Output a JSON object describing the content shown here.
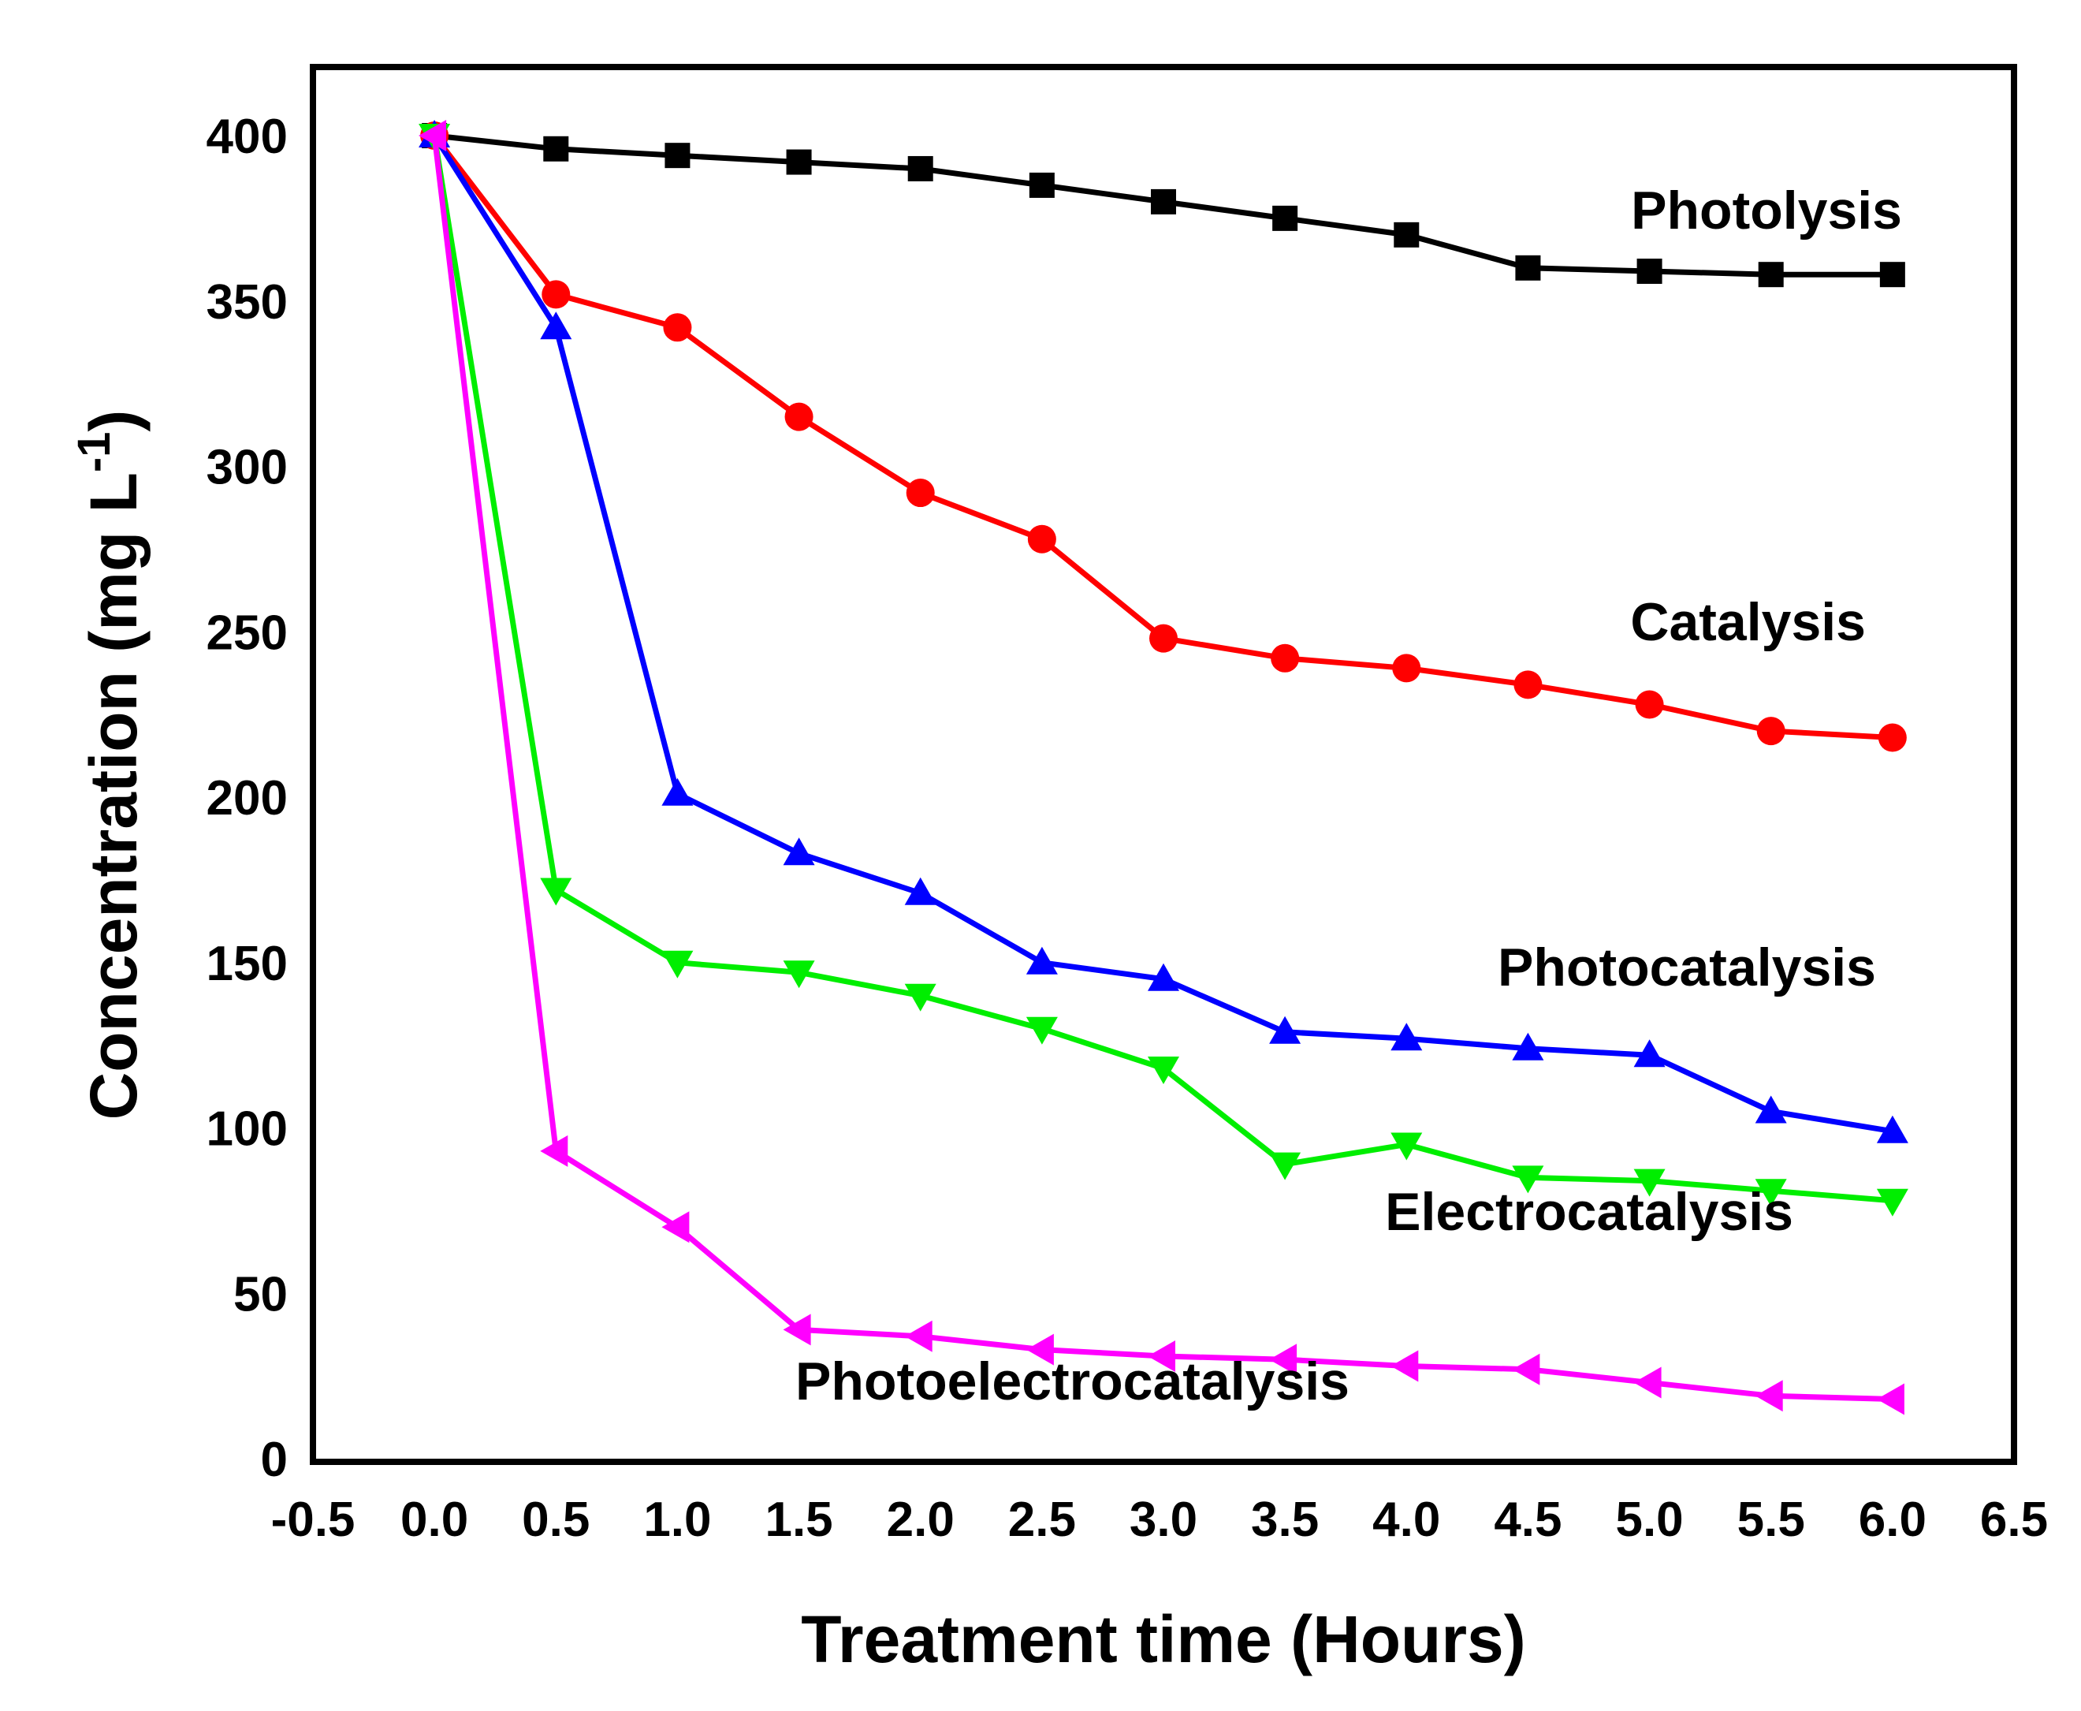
{
  "chart_data": {
    "type": "line",
    "title": "",
    "xlabel": "Treatment time (Hours)",
    "ylabel_main": "Concentration (mg L",
    "ylabel_sup": "-1",
    "ylabel_close": ")",
    "xlim": [
      -0.5,
      6.5
    ],
    "ylim": [
      0,
      400
    ],
    "x_ticks": [
      -0.5,
      0.0,
      0.5,
      1.0,
      1.5,
      2.0,
      2.5,
      3.0,
      3.5,
      4.0,
      4.5,
      5.0,
      5.5,
      6.0,
      6.5
    ],
    "x_tick_labels": [
      "-0.5",
      "0.0",
      "0.5",
      "1.0",
      "1.5",
      "2.0",
      "2.5",
      "3.0",
      "3.5",
      "4.0",
      "4.5",
      "5.0",
      "5.5",
      "6.0",
      "6.5"
    ],
    "y_ticks": [
      0,
      50,
      100,
      150,
      200,
      250,
      300,
      350,
      400
    ],
    "y_tick_labels": [
      "0",
      "50",
      "100",
      "150",
      "200",
      "250",
      "300",
      "350",
      "400"
    ],
    "grid": false,
    "legend": "inline labels",
    "x": [
      0.0,
      0.5,
      1.0,
      1.5,
      2.0,
      2.5,
      3.0,
      3.5,
      4.0,
      4.5,
      5.0,
      5.5,
      6.0
    ],
    "series": [
      {
        "name": "Photolysis",
        "color": "#000000",
        "marker": "square",
        "values": [
          400,
          396,
          394,
          392,
          390,
          385,
          380,
          375,
          370,
          360,
          359,
          358,
          358
        ]
      },
      {
        "name": "Catalysis",
        "color": "#ff0000",
        "marker": "circle",
        "values": [
          400,
          352,
          342,
          315,
          292,
          278,
          248,
          242,
          239,
          234,
          228,
          220,
          218
        ]
      },
      {
        "name": "Photocatalysis",
        "color": "#0000ff",
        "marker": "triangle-up",
        "values": [
          400,
          342,
          201,
          183,
          171,
          150,
          145,
          129,
          127,
          124,
          122,
          105,
          99
        ]
      },
      {
        "name": "Electrocatalysis",
        "color": "#00ee00",
        "marker": "triangle-down",
        "values": [
          400,
          172,
          150,
          147,
          140,
          130,
          118,
          89,
          95,
          85,
          84,
          81,
          78
        ]
      },
      {
        "name": "Photoelectrocatalysis",
        "color": "#ff00ff",
        "marker": "triangle-left",
        "values": [
          400,
          93,
          70,
          39,
          37,
          33,
          31,
          30,
          28,
          27,
          23,
          19,
          18
        ]
      }
    ]
  }
}
